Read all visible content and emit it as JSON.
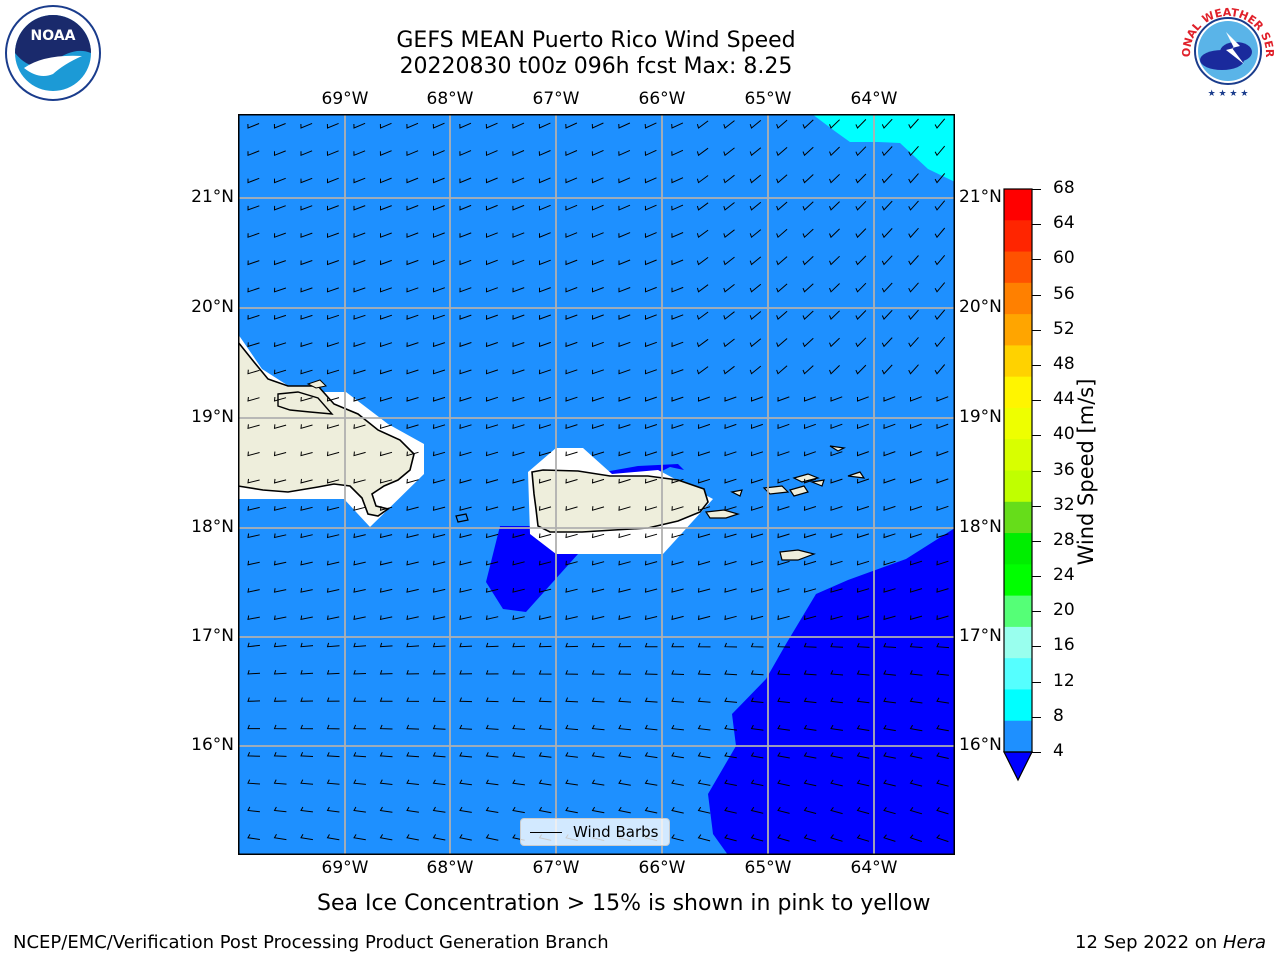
{
  "title": {
    "line1": "GEFS MEAN Puerto Rico Wind Speed",
    "line2": "20220830 t00z 096h fcst   Max: 8.25"
  },
  "logos": {
    "left": {
      "name": "noaa-logo",
      "text": "NOAA"
    },
    "right": {
      "name": "nws-logo",
      "text": "NATIONAL WEATHER SERVICE"
    }
  },
  "map": {
    "lon_labels": [
      "69°W",
      "68°W",
      "67°W",
      "66°W",
      "65°W",
      "64°W"
    ],
    "lat_labels": [
      "21°N",
      "20°N",
      "19°N",
      "18°N",
      "17°N",
      "16°N"
    ],
    "legend_label": "Wind Barbs",
    "colors": {
      "ocean_4_8": "#1e90ff",
      "calm_below_4": "#0000ff",
      "ocean_8_12": "#00ffff",
      "land": "#eeeedc"
    }
  },
  "colorbar": {
    "label": "Wind Speed [m/s]",
    "ticks": [
      "68",
      "64",
      "60",
      "56",
      "52",
      "48",
      "44",
      "40",
      "36",
      "32",
      "28",
      "24",
      "20",
      "16",
      "12",
      "8",
      "4"
    ],
    "colors": [
      "#ff0000",
      "#ff2500",
      "#ff5200",
      "#ff8000",
      "#ffa500",
      "#ffd200",
      "#fff500",
      "#eeff00",
      "#d8ff00",
      "#c0ff00",
      "#66dd1a",
      "#00ee00",
      "#00ff00",
      "#55ff77",
      "#99ffee",
      "#55ffff",
      "#00ffff",
      "#1e90ff"
    ],
    "extend_color": "#0000ff"
  },
  "subtitle": "Sea Ice Concentration > 15% is shown in pink to yellow",
  "footer": {
    "left": "NCEP/EMC/Verification Post Processing Product Generation Branch",
    "right_date": "12 Sep 2022 on ",
    "right_host": "Hera"
  }
}
